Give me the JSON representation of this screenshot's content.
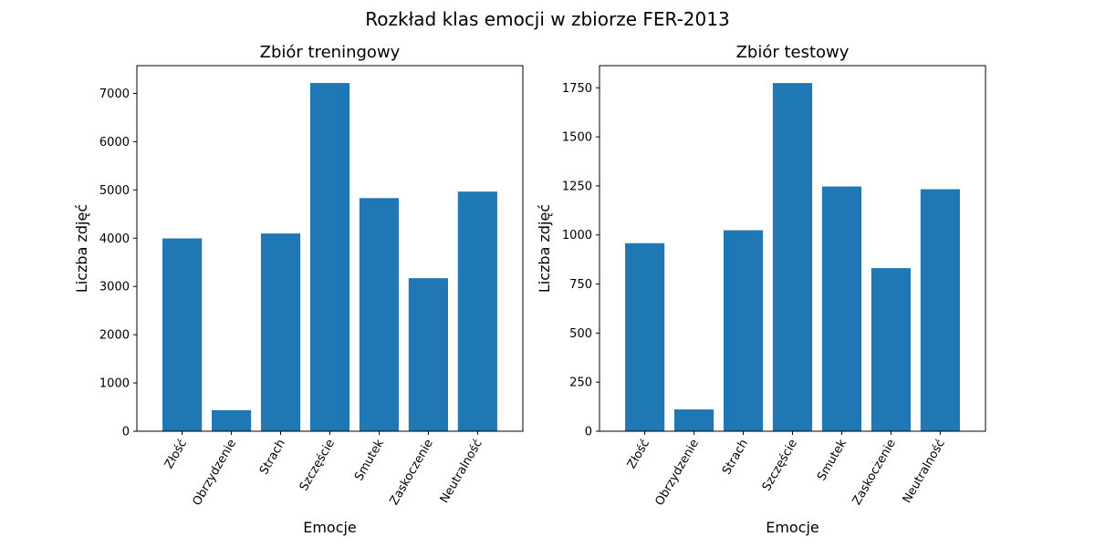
{
  "figure": {
    "title": "Rozkład klas emocji w zbiorze FER-2013",
    "bar_color": "#1f77b4"
  },
  "chart_data": [
    {
      "type": "bar",
      "title": "Zbiór treningowy",
      "xlabel": "Emocje",
      "ylabel": "Liczba zdjęć",
      "categories": [
        "Złość",
        "Obrzydzenie",
        "Strach",
        "Szczęście",
        "Smutek",
        "Zaskoczenie",
        "Neutralność"
      ],
      "values": [
        3995,
        436,
        4097,
        7215,
        4830,
        3171,
        4965
      ],
      "ylim": [
        0,
        7575
      ],
      "yticks": [
        0,
        1000,
        2000,
        3000,
        4000,
        5000,
        6000,
        7000
      ],
      "grid": false
    },
    {
      "type": "bar",
      "title": "Zbiór testowy",
      "xlabel": "Emocje",
      "ylabel": "Liczba zdjęć",
      "categories": [
        "Złość",
        "Obrzydzenie",
        "Strach",
        "Szczęście",
        "Smutek",
        "Zaskoczenie",
        "Neutralność"
      ],
      "values": [
        958,
        111,
        1024,
        1774,
        1247,
        831,
        1233
      ],
      "ylim": [
        0,
        1862.7
      ],
      "yticks": [
        0,
        250,
        500,
        750,
        1000,
        1250,
        1500,
        1750
      ],
      "grid": false
    }
  ]
}
